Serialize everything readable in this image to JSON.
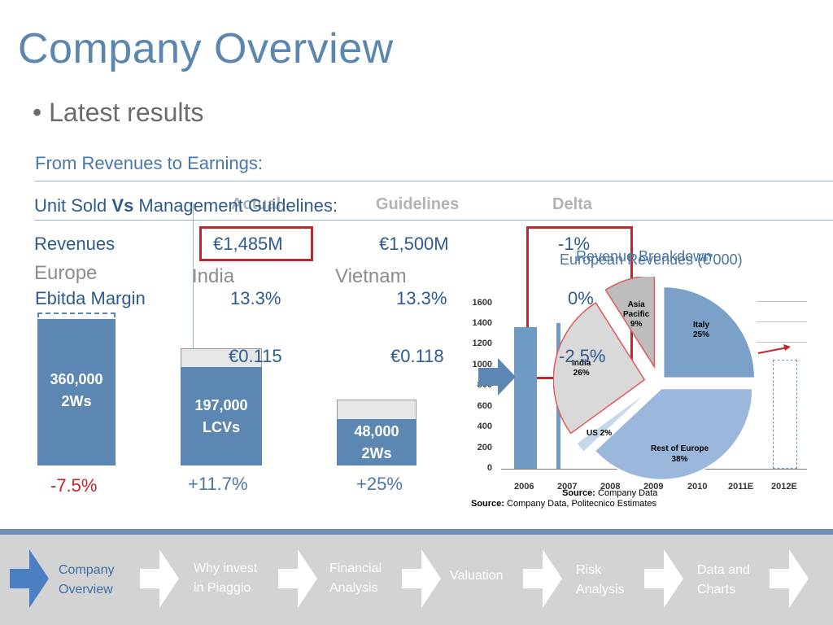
{
  "header": {
    "title": "Company Overview",
    "bullet": "• Latest results",
    "from_label": "From Revenues to Earnings:",
    "unit_sold_pre": "Unit Sold ",
    "unit_sold_vs": "Vs",
    "unit_sold_post": " Management Guidelines:"
  },
  "table": {
    "col_actual": "Actual",
    "col_guidelines": "Guidelines",
    "col_delta": "Delta",
    "rows": [
      {
        "label": "Revenues",
        "actual": "€1,485M",
        "guideline": "€1,500M",
        "delta": "-1%"
      },
      {
        "label": "Ebitda Margin",
        "actual": "13.3%",
        "guideline": "13.3%",
        "delta": "0%"
      },
      {
        "label": "",
        "actual": "€0.115",
        "guideline": "€0.118",
        "delta": "-2.5%"
      }
    ]
  },
  "regions": {
    "europe": "Europe",
    "india": "India",
    "vietnam": "Vietnam"
  },
  "units": {
    "europe": {
      "line1": "360,000",
      "line2": "2Ws",
      "change": "-7.5%"
    },
    "india": {
      "line1": "197,000",
      "line2": "LCVs",
      "change": "+11.7%"
    },
    "vietnam": {
      "line1": "48,000",
      "line2": "2Ws",
      "change": "+25%"
    }
  },
  "right_chart": {
    "title_a": "Revenue Breakdown",
    "title_b": "European Revenues (€'000)",
    "y_ticks": [
      "1600",
      "1400",
      "1200",
      "1000",
      "800",
      "600",
      "400",
      "200",
      "0"
    ],
    "x_ticks": [
      "2006",
      "2007",
      "2008",
      "2009",
      "2010",
      "2011E",
      "2012E"
    ],
    "source1_label": "Source:",
    "source1_text": " Company Data",
    "source2_label": "Source:",
    "source2_text": " Company Data, Politecnico Estimates"
  },
  "chart_data": {
    "type": "pie",
    "title": "Revenue Breakdown",
    "categories": [
      "Italy",
      "Rest of Europe",
      "US",
      "India",
      "Asia Pacific"
    ],
    "values": [
      25,
      38,
      2,
      26,
      9
    ],
    "unit": "%",
    "colors": {
      "europe": "#7ba1c9",
      "rest": "#9bb8dc",
      "us": "#c8d8ea",
      "india": "#d9d9d9",
      "asia": "#bdbdbd"
    }
  },
  "slice_labels": {
    "italy": [
      "Italy",
      "25%"
    ],
    "rest": [
      "Rest of Europe",
      "38%"
    ],
    "us": "US 2%",
    "india": [
      "India",
      "26%"
    ],
    "asia": [
      "Asia",
      "Pacific",
      "9%"
    ]
  },
  "nav": {
    "items": [
      {
        "line1": "Company",
        "line2": "Overview"
      },
      {
        "line1": "Why invest",
        "line2": "in Piaggio"
      },
      {
        "line1": "Financial",
        "line2": "Analysis"
      },
      {
        "line1": "Valuation",
        "line2": ""
      },
      {
        "line1": "Risk",
        "line2": "Analysis"
      },
      {
        "line1": "Data and",
        "line2": "Charts"
      }
    ]
  }
}
